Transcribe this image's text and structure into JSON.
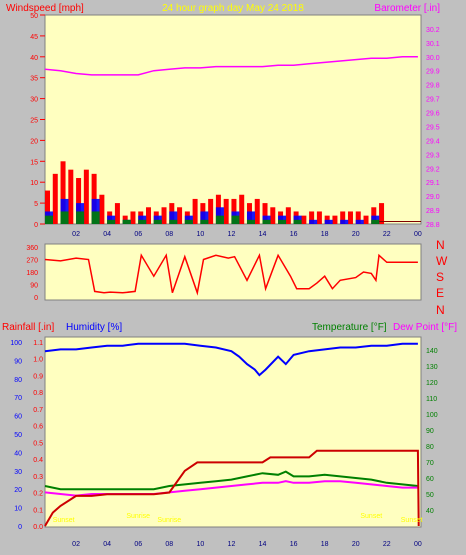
{
  "header": {
    "left_label": "Windspeed [mph]",
    "center_label": "24 hour graph day   May 24 2018",
    "right_label": "Barometer [.in]"
  },
  "wind_dir_labels": [
    "N",
    "W",
    "S",
    "E",
    "N"
  ],
  "bottom_labels": {
    "rainfall": "Rainfall [.in]",
    "humidity": "Humidity [%]",
    "temperature": "Temperature [°F]",
    "dewpoint": "Dew Point [°F]"
  },
  "sun_labels": [
    {
      "text": "Sunset",
      "hour": 1.2
    },
    {
      "text": "Sunrise",
      "hour": 6.0
    },
    {
      "text": "Sunrise",
      "hour": 8.0
    },
    {
      "text": "Sunset",
      "hour": 21.0
    },
    {
      "text": "Sunset",
      "hour": 23.6
    }
  ],
  "colors": {
    "plot_bg": "#ffffc0",
    "wind": "#ff0000",
    "gust": "#0000ff",
    "avg": "#008000",
    "barometer": "#ff00ff",
    "humidity": "#0000ff",
    "temperature": "#008000",
    "dewpoint": "#ff00ff",
    "rain": "#cc0000",
    "sun": "#ffff00",
    "header_text": "#ffff00"
  },
  "chart_data": [
    {
      "type": "bar",
      "name": "wind",
      "xlabel": "",
      "x_ticks": [
        "02",
        "04",
        "06",
        "08",
        "10",
        "12",
        "14",
        "16",
        "18",
        "20",
        "22",
        "00"
      ],
      "x_tick_hours": [
        2,
        4,
        6,
        8,
        10,
        12,
        14,
        16,
        18,
        20,
        22,
        24
      ],
      "ylabel_left": "Windspeed [mph]",
      "ylim": [
        0,
        50
      ],
      "y_ticks": [
        0,
        5,
        10,
        15,
        20,
        25,
        30,
        35,
        40,
        45,
        50
      ],
      "y2label": "Barometer [.in]",
      "y2lim": [
        28.8,
        30.3
      ],
      "y2_ticks": [
        28.8,
        28.9,
        29.0,
        29.1,
        29.2,
        29.3,
        29.4,
        29.5,
        29.6,
        29.7,
        29.8,
        29.9,
        30.0,
        30.1,
        30.2
      ],
      "series": [
        {
          "name": "Windspeed",
          "x": [
            0,
            0.5,
            1,
            1.5,
            2,
            2.5,
            3,
            3.5,
            4,
            4.5,
            5,
            5.5,
            6,
            6.5,
            7,
            7.5,
            8,
            8.5,
            9,
            9.5,
            10,
            10.5,
            11,
            11.5,
            12,
            12.5,
            13,
            13.5,
            14,
            14.5,
            15,
            15.5,
            16,
            16.5,
            17,
            17.5,
            18,
            18.5,
            19,
            19.5,
            20,
            20.5,
            21,
            21.5
          ],
          "values": [
            8,
            12,
            15,
            13,
            11,
            13,
            12,
            7,
            3,
            5,
            2,
            3,
            3,
            4,
            3,
            4,
            5,
            4,
            3,
            6,
            5,
            6,
            7,
            6,
            6,
            7,
            5,
            6,
            5,
            4,
            3,
            4,
            3,
            2,
            3,
            3,
            2,
            2,
            3,
            3,
            3,
            2,
            4,
            5
          ]
        },
        {
          "name": "Gust",
          "x": [
            0,
            1,
            2,
            3,
            4,
            5,
            6,
            7,
            8,
            9,
            10,
            11,
            12,
            13,
            14,
            15,
            16,
            17,
            18,
            19,
            20,
            21
          ],
          "values": [
            3,
            6,
            5,
            6,
            2,
            1,
            2,
            2,
            3,
            2,
            3,
            4,
            3,
            3,
            2,
            2,
            2,
            1,
            1,
            1,
            1,
            2
          ]
        },
        {
          "name": "Average",
          "x": [
            0,
            1,
            2,
            3,
            4,
            5,
            6,
            7,
            8,
            9,
            10,
            11,
            12,
            13,
            14,
            15,
            16,
            17,
            18,
            19,
            20,
            21
          ],
          "values": [
            2,
            3,
            3,
            3,
            1,
            1,
            1,
            1,
            1,
            1,
            1,
            2,
            2,
            1,
            1,
            1,
            1,
            0,
            0,
            0,
            0,
            1
          ]
        },
        {
          "name": "Barometer",
          "x": [
            0,
            1,
            2,
            3,
            4,
            5,
            6,
            7,
            8,
            9,
            10,
            11,
            12,
            13,
            14,
            15,
            16,
            17,
            18,
            19,
            20,
            21,
            22,
            23,
            24
          ],
          "values": [
            29.91,
            29.9,
            29.88,
            29.87,
            29.87,
            29.87,
            29.87,
            29.9,
            29.91,
            29.92,
            29.92,
            29.93,
            29.93,
            29.93,
            29.93,
            29.94,
            29.94,
            29.95,
            29.96,
            29.97,
            29.98,
            29.99,
            29.99,
            30.0,
            30.0
          ]
        }
      ]
    },
    {
      "type": "line",
      "name": "wind_direction",
      "ylim": [
        0,
        360
      ],
      "y_ticks": [
        0,
        90,
        180,
        270,
        360
      ],
      "x": [
        0,
        1,
        2,
        2.8,
        3.2,
        3.8,
        4.2,
        5,
        5.8,
        6.2,
        7,
        7.8,
        8.2,
        9,
        9.8,
        10.2,
        11,
        11.8,
        12.2,
        13,
        13.8,
        14.2,
        15,
        15.8,
        16.2,
        17,
        17.5,
        18,
        18.5,
        19,
        20,
        20.5,
        21,
        21.3,
        21.5,
        22,
        23,
        24
      ],
      "values": [
        270,
        260,
        280,
        270,
        40,
        30,
        35,
        30,
        40,
        300,
        150,
        300,
        30,
        290,
        30,
        270,
        300,
        280,
        290,
        120,
        300,
        60,
        300,
        150,
        60,
        60,
        100,
        150,
        60,
        120,
        140,
        180,
        170,
        120,
        300,
        250,
        250,
        250
      ]
    },
    {
      "type": "line",
      "name": "rain_humidity_temperature",
      "ylabel_left": "Rainfall [.in]",
      "ylim": [
        0,
        1.1
      ],
      "y_ticks": [
        0,
        0.1,
        0.2,
        0.3,
        0.4,
        0.5,
        0.6,
        0.7,
        0.8,
        0.9,
        1.0,
        1.1
      ],
      "humidity_ylim": [
        0,
        100
      ],
      "humidity_ticks": [
        0,
        10,
        20,
        30,
        40,
        50,
        60,
        70,
        80,
        90,
        100
      ],
      "y2label": "Temperature [°F]",
      "y2lim": [
        30,
        145
      ],
      "y2_ticks": [
        40,
        50,
        60,
        70,
        80,
        90,
        100,
        110,
        120,
        130,
        140
      ],
      "series": [
        {
          "name": "Humidity",
          "x": [
            0,
            1,
            2,
            3,
            4,
            5,
            6,
            7,
            8,
            9,
            10,
            11,
            12,
            12.5,
            13,
            13.5,
            13.8,
            14.2,
            15,
            15.5,
            16,
            17,
            18,
            19,
            20,
            21,
            22,
            23,
            24
          ],
          "values": [
            95,
            96,
            96,
            97,
            98,
            98,
            99,
            99,
            99,
            99,
            98,
            97,
            95,
            92,
            88,
            85,
            82,
            85,
            92,
            88,
            93,
            95,
            96,
            97,
            97,
            98,
            98,
            99,
            99
          ]
        },
        {
          "name": "Temperature",
          "x": [
            0,
            1,
            2,
            3,
            4,
            5,
            6,
            7,
            8,
            9,
            10,
            11,
            12,
            13,
            14,
            15,
            15.5,
            16,
            17,
            18,
            19,
            20,
            21,
            22,
            23,
            24
          ],
          "values": [
            55,
            53,
            53,
            53,
            53,
            53,
            53,
            53,
            55,
            56,
            57,
            58,
            59,
            61,
            63,
            62,
            64,
            61,
            61,
            62,
            61,
            60,
            59,
            57,
            56,
            55
          ]
        },
        {
          "name": "Dew Point",
          "x": [
            0,
            1,
            2,
            3,
            4,
            5,
            6,
            7,
            8,
            9,
            10,
            11,
            12,
            13,
            14,
            15,
            15.5,
            16,
            17,
            18,
            19,
            20,
            21,
            22,
            23,
            24
          ],
          "values": [
            51,
            50,
            49,
            50,
            50,
            50,
            50,
            50,
            51,
            52,
            53,
            54,
            55,
            56,
            57,
            57,
            58,
            57,
            57,
            58,
            58,
            57,
            56,
            55,
            54,
            54
          ]
        },
        {
          "name": "Rainfall",
          "x": [
            0,
            0.5,
            1,
            2,
            3,
            4,
            5,
            6,
            7,
            8,
            9,
            9.8,
            10.5,
            11,
            12,
            13,
            14,
            14.5,
            15,
            15.5,
            16,
            17,
            17.5,
            18,
            19,
            20,
            21,
            22,
            23,
            24,
            24.05
          ],
          "values": [
            0,
            0.08,
            0.12,
            0.18,
            0.18,
            0.19,
            0.19,
            0.19,
            0.19,
            0.2,
            0.33,
            0.38,
            0.38,
            0.38,
            0.38,
            0.38,
            0.38,
            0.41,
            0.41,
            0.41,
            0.41,
            0.41,
            0.45,
            0.45,
            0.45,
            0.45,
            0.45,
            0.45,
            0.45,
            0.45,
            0
          ]
        }
      ]
    }
  ]
}
